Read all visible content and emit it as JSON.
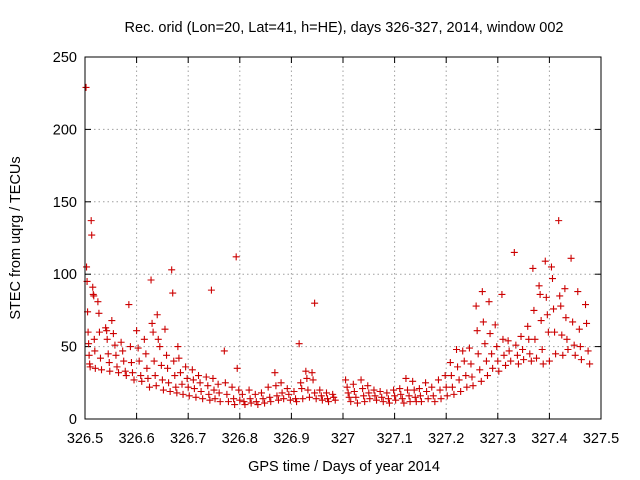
{
  "chart_data": {
    "type": "scatter",
    "title": "Rec. orid (Lon=20, Lat=41, h=HE), days 326-327, 2014, window 002",
    "xlabel": "GPS time / Days of year 2014",
    "ylabel": "STEC from uqrg / TECUs",
    "xlim": [
      326.5,
      327.5
    ],
    "ylim": [
      0,
      250
    ],
    "x_ticks": [
      326.5,
      326.6,
      326.7,
      326.8,
      326.9,
      327.0,
      327.1,
      327.2,
      327.3,
      327.4,
      327.5
    ],
    "x_tick_labels": [
      "326.5",
      "326.6",
      "326.7",
      "326.8",
      "326.9",
      "327",
      "327.1",
      "327.2",
      "327.3",
      "327.4",
      "327.5"
    ],
    "y_ticks": [
      0,
      50,
      100,
      150,
      200,
      250
    ],
    "y_tick_labels": [
      "0",
      "50",
      "100",
      "150",
      "200",
      "250"
    ],
    "grid": true,
    "marker": "+",
    "color": "#cc0000",
    "points": [
      [
        326.502,
        229
      ],
      [
        326.503,
        105
      ],
      [
        326.504,
        95
      ],
      [
        326.505,
        74
      ],
      [
        326.506,
        60
      ],
      [
        326.507,
        52
      ],
      [
        326.508,
        44
      ],
      [
        326.509,
        38
      ],
      [
        326.51,
        36
      ],
      [
        326.512,
        137
      ],
      [
        326.513,
        127
      ],
      [
        326.515,
        91
      ],
      [
        326.516,
        86
      ],
      [
        326.517,
        85
      ],
      [
        326.518,
        55
      ],
      [
        326.519,
        47
      ],
      [
        326.52,
        35
      ],
      [
        326.525,
        81
      ],
      [
        326.527,
        73
      ],
      [
        326.528,
        60
      ],
      [
        326.53,
        42
      ],
      [
        326.532,
        34
      ],
      [
        326.54,
        63
      ],
      [
        326.542,
        61
      ],
      [
        326.543,
        55
      ],
      [
        326.545,
        45
      ],
      [
        326.547,
        39
      ],
      [
        326.548,
        33
      ],
      [
        326.552,
        68
      ],
      [
        326.555,
        59
      ],
      [
        326.558,
        51
      ],
      [
        326.56,
        44
      ],
      [
        326.562,
        36
      ],
      [
        326.565,
        32
      ],
      [
        326.57,
        53
      ],
      [
        326.573,
        47
      ],
      [
        326.575,
        40
      ],
      [
        326.578,
        33
      ],
      [
        326.58,
        30
      ],
      [
        326.585,
        79
      ],
      [
        326.588,
        50
      ],
      [
        326.59,
        39
      ],
      [
        326.592,
        32
      ],
      [
        326.595,
        27
      ],
      [
        326.6,
        61
      ],
      [
        326.603,
        49
      ],
      [
        326.605,
        40
      ],
      [
        326.608,
        30
      ],
      [
        326.61,
        26
      ],
      [
        326.615,
        55
      ],
      [
        326.618,
        45
      ],
      [
        326.62,
        35
      ],
      [
        326.622,
        28
      ],
      [
        326.625,
        22
      ],
      [
        326.628,
        96
      ],
      [
        326.63,
        66
      ],
      [
        326.632,
        60
      ],
      [
        326.634,
        40
      ],
      [
        326.636,
        30
      ],
      [
        326.638,
        23
      ],
      [
        326.64,
        72
      ],
      [
        326.642,
        55
      ],
      [
        326.645,
        50
      ],
      [
        326.648,
        37
      ],
      [
        326.65,
        27
      ],
      [
        326.652,
        20
      ],
      [
        326.655,
        62
      ],
      [
        326.658,
        44
      ],
      [
        326.66,
        35
      ],
      [
        326.662,
        25
      ],
      [
        326.665,
        19
      ],
      [
        326.668,
        103
      ],
      [
        326.67,
        87
      ],
      [
        326.672,
        40
      ],
      [
        326.674,
        30
      ],
      [
        326.676,
        22
      ],
      [
        326.678,
        18
      ],
      [
        326.68,
        50
      ],
      [
        326.682,
        42
      ],
      [
        326.685,
        32
      ],
      [
        326.688,
        24
      ],
      [
        326.69,
        17
      ],
      [
        326.695,
        36
      ],
      [
        326.698,
        28
      ],
      [
        326.7,
        22
      ],
      [
        326.702,
        16
      ],
      [
        326.708,
        34
      ],
      [
        326.71,
        27
      ],
      [
        326.712,
        21
      ],
      [
        326.715,
        15
      ],
      [
        326.72,
        30
      ],
      [
        326.723,
        25
      ],
      [
        326.725,
        19
      ],
      [
        326.728,
        14
      ],
      [
        326.735,
        29
      ],
      [
        326.738,
        23
      ],
      [
        326.74,
        17
      ],
      [
        326.742,
        13
      ],
      [
        326.745,
        89
      ],
      [
        326.748,
        28
      ],
      [
        326.75,
        20
      ],
      [
        326.752,
        14
      ],
      [
        326.758,
        24
      ],
      [
        326.76,
        18
      ],
      [
        326.762,
        12
      ],
      [
        326.77,
        47
      ],
      [
        326.772,
        25
      ],
      [
        326.775,
        17
      ],
      [
        326.778,
        12
      ],
      [
        326.785,
        22
      ],
      [
        326.788,
        14
      ],
      [
        326.79,
        10
      ],
      [
        326.793,
        112
      ],
      [
        326.795,
        35
      ],
      [
        326.798,
        20
      ],
      [
        326.8,
        13
      ],
      [
        326.805,
        17
      ],
      [
        326.808,
        12
      ],
      [
        326.81,
        10
      ],
      [
        326.818,
        20
      ],
      [
        326.82,
        14
      ],
      [
        326.822,
        11
      ],
      [
        326.83,
        17
      ],
      [
        326.832,
        12
      ],
      [
        326.835,
        10
      ],
      [
        326.842,
        18
      ],
      [
        326.845,
        14
      ],
      [
        326.848,
        11
      ],
      [
        326.855,
        22
      ],
      [
        326.858,
        15
      ],
      [
        326.86,
        12
      ],
      [
        326.868,
        32
      ],
      [
        326.87,
        23
      ],
      [
        326.872,
        16
      ],
      [
        326.875,
        13
      ],
      [
        326.88,
        25
      ],
      [
        326.882,
        18
      ],
      [
        326.885,
        14
      ],
      [
        326.892,
        21
      ],
      [
        326.895,
        17
      ],
      [
        326.898,
        13
      ],
      [
        326.905,
        19
      ],
      [
        326.908,
        14
      ],
      [
        326.91,
        12
      ],
      [
        326.915,
        52
      ],
      [
        326.918,
        25
      ],
      [
        326.92,
        21
      ],
      [
        326.922,
        14
      ],
      [
        326.928,
        33
      ],
      [
        326.93,
        28
      ],
      [
        326.932,
        20
      ],
      [
        326.935,
        15
      ],
      [
        326.94,
        32
      ],
      [
        326.942,
        27
      ],
      [
        326.945,
        18
      ],
      [
        326.948,
        14
      ],
      [
        326.945,
        80
      ],
      [
        326.955,
        20
      ],
      [
        326.958,
        16
      ],
      [
        326.96,
        13
      ],
      [
        326.968,
        18
      ],
      [
        326.97,
        14
      ],
      [
        326.972,
        12
      ],
      [
        326.98,
        17
      ],
      [
        326.982,
        15
      ],
      [
        326.985,
        13
      ],
      [
        327.005,
        27
      ],
      [
        327.008,
        22
      ],
      [
        327.01,
        18
      ],
      [
        327.012,
        15
      ],
      [
        327.015,
        12
      ],
      [
        327.02,
        24
      ],
      [
        327.022,
        19
      ],
      [
        327.025,
        15
      ],
      [
        327.028,
        11
      ],
      [
        327.035,
        27
      ],
      [
        327.038,
        21
      ],
      [
        327.04,
        16
      ],
      [
        327.042,
        12
      ],
      [
        327.048,
        23
      ],
      [
        327.05,
        18
      ],
      [
        327.052,
        14
      ],
      [
        327.06,
        20
      ],
      [
        327.062,
        16
      ],
      [
        327.065,
        13
      ],
      [
        327.072,
        19
      ],
      [
        327.075,
        15
      ],
      [
        327.078,
        12
      ],
      [
        327.085,
        18
      ],
      [
        327.088,
        14
      ],
      [
        327.09,
        11
      ],
      [
        327.098,
        20
      ],
      [
        327.1,
        16
      ],
      [
        327.102,
        13
      ],
      [
        327.11,
        21
      ],
      [
        327.112,
        17
      ],
      [
        327.115,
        14
      ],
      [
        327.118,
        11
      ],
      [
        327.122,
        28
      ],
      [
        327.125,
        20
      ],
      [
        327.128,
        16
      ],
      [
        327.13,
        12
      ],
      [
        327.135,
        26
      ],
      [
        327.138,
        20
      ],
      [
        327.14,
        15
      ],
      [
        327.142,
        12
      ],
      [
        327.148,
        21
      ],
      [
        327.15,
        16
      ],
      [
        327.152,
        12
      ],
      [
        327.16,
        25
      ],
      [
        327.162,
        19
      ],
      [
        327.165,
        14
      ],
      [
        327.172,
        22
      ],
      [
        327.175,
        16
      ],
      [
        327.178,
        12
      ],
      [
        327.185,
        27
      ],
      [
        327.188,
        20
      ],
      [
        327.19,
        14
      ],
      [
        327.198,
        30
      ],
      [
        327.2,
        22
      ],
      [
        327.202,
        16
      ],
      [
        327.208,
        39
      ],
      [
        327.21,
        30
      ],
      [
        327.212,
        22
      ],
      [
        327.215,
        17
      ],
      [
        327.22,
        48
      ],
      [
        327.222,
        36
      ],
      [
        327.225,
        27
      ],
      [
        327.228,
        19
      ],
      [
        327.232,
        47
      ],
      [
        327.235,
        40
      ],
      [
        327.238,
        30
      ],
      [
        327.24,
        22
      ],
      [
        327.245,
        49
      ],
      [
        327.248,
        38
      ],
      [
        327.25,
        29
      ],
      [
        327.252,
        23
      ],
      [
        327.258,
        78
      ],
      [
        327.26,
        61
      ],
      [
        327.262,
        45
      ],
      [
        327.265,
        34
      ],
      [
        327.268,
        26
      ],
      [
        327.27,
        88
      ],
      [
        327.272,
        67
      ],
      [
        327.275,
        52
      ],
      [
        327.278,
        40
      ],
      [
        327.28,
        30
      ],
      [
        327.283,
        81
      ],
      [
        327.285,
        59
      ],
      [
        327.288,
        45
      ],
      [
        327.29,
        35
      ],
      [
        327.295,
        65
      ],
      [
        327.298,
        50
      ],
      [
        327.3,
        40
      ],
      [
        327.302,
        33
      ],
      [
        327.308,
        86
      ],
      [
        327.31,
        55
      ],
      [
        327.312,
        44
      ],
      [
        327.315,
        37
      ],
      [
        327.32,
        54
      ],
      [
        327.322,
        47
      ],
      [
        327.325,
        40
      ],
      [
        327.332,
        115
      ],
      [
        327.335,
        51
      ],
      [
        327.338,
        44
      ],
      [
        327.34,
        38
      ],
      [
        327.345,
        57
      ],
      [
        327.348,
        48
      ],
      [
        327.35,
        41
      ],
      [
        327.358,
        64
      ],
      [
        327.36,
        55
      ],
      [
        327.362,
        45
      ],
      [
        327.365,
        40
      ],
      [
        327.368,
        104
      ],
      [
        327.37,
        75
      ],
      [
        327.372,
        55
      ],
      [
        327.375,
        42
      ],
      [
        327.38,
        92
      ],
      [
        327.382,
        86
      ],
      [
        327.384,
        68
      ],
      [
        327.386,
        48
      ],
      [
        327.388,
        38
      ],
      [
        327.392,
        109
      ],
      [
        327.394,
        84
      ],
      [
        327.396,
        72
      ],
      [
        327.398,
        60
      ],
      [
        327.4,
        40
      ],
      [
        327.404,
        105
      ],
      [
        327.406,
        97
      ],
      [
        327.408,
        76
      ],
      [
        327.41,
        60
      ],
      [
        327.412,
        45
      ],
      [
        327.418,
        137
      ],
      [
        327.42,
        85
      ],
      [
        327.422,
        78
      ],
      [
        327.424,
        58
      ],
      [
        327.426,
        44
      ],
      [
        327.43,
        90
      ],
      [
        327.432,
        70
      ],
      [
        327.434,
        55
      ],
      [
        327.436,
        48
      ],
      [
        327.442,
        111
      ],
      [
        327.445,
        67
      ],
      [
        327.448,
        51
      ],
      [
        327.45,
        44
      ],
      [
        327.455,
        88
      ],
      [
        327.458,
        62
      ],
      [
        327.46,
        50
      ],
      [
        327.462,
        41
      ],
      [
        327.47,
        79
      ],
      [
        327.472,
        66
      ],
      [
        327.475,
        47
      ],
      [
        327.478,
        38
      ]
    ]
  }
}
